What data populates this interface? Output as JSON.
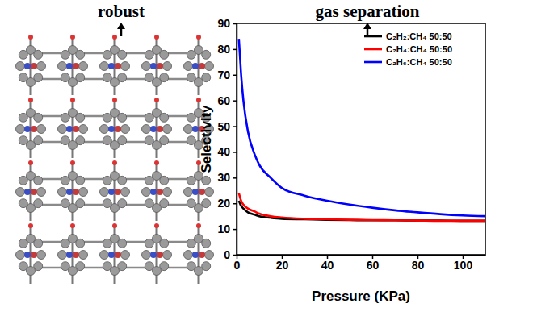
{
  "panels": {
    "left_caption": "robust",
    "right_caption": "gas separation"
  },
  "chart_data": {
    "type": "line",
    "x_label": "Pressure (KPa)",
    "y_label": "Selectivity",
    "x": [
      1,
      2,
      3,
      5,
      8,
      10,
      15,
      20,
      30,
      40,
      50,
      60,
      70,
      80,
      90,
      100,
      110
    ],
    "series": [
      {
        "name": "C₂H₂:CH₄ 50:50",
        "color": "#000000",
        "line_style": "solid",
        "values": [
          21,
          19,
          18,
          16.5,
          15.6,
          15,
          14.4,
          14,
          13.8,
          13.6,
          13.5,
          13.4,
          13.4,
          13.3,
          13.3,
          13.2,
          13.2
        ]
      },
      {
        "name": "C₂H₄:CH₄ 50:50",
        "color": "#ff0000",
        "line_style": "solid",
        "values": [
          24,
          21,
          19.5,
          18,
          16.8,
          16,
          15,
          14.5,
          14,
          13.8,
          13.6,
          13.5,
          13.4,
          13.3,
          13.2,
          13.2,
          13.2
        ]
      },
      {
        "name": "C₂H₆:CH₄ 50:50",
        "color": "#0000ff",
        "line_style": "solid",
        "values": [
          84,
          70,
          60,
          48,
          39,
          35,
          30,
          26,
          23,
          21,
          19.5,
          18.3,
          17.3,
          16.5,
          15.8,
          15.3,
          15
        ]
      }
    ],
    "xlim": [
      0,
      110
    ],
    "xticks": [
      0,
      20,
      40,
      60,
      80,
      100
    ],
    "ylim": [
      0,
      90
    ],
    "yticks": [
      0,
      10,
      20,
      30,
      40,
      50,
      60,
      70,
      80,
      90
    ],
    "grid": false,
    "legend": "upper right"
  }
}
